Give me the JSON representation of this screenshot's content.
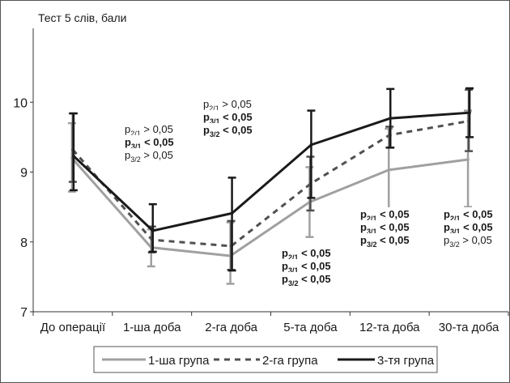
{
  "chart_data": {
    "type": "line",
    "title": "Тест 5 слів, бали",
    "xlabel": "",
    "ylabel": "",
    "categories": [
      "До операції",
      "1-ша доба",
      "2-га доба",
      "5-та доба",
      "12-та доба",
      "30-та доба"
    ],
    "ylim": [
      7,
      11
    ],
    "yticks": [
      7,
      8,
      9,
      10
    ],
    "grid": false,
    "legend_position": "bottom",
    "series": [
      {
        "name": "1-ша група",
        "color": "#a0a0a0",
        "dash": "solid",
        "values": [
          9.2,
          7.92,
          7.8,
          8.57,
          9.03,
          9.18
        ],
        "err_low": [
          8.72,
          7.65,
          7.4,
          8.07,
          8.44,
          8.5
        ],
        "err_high": [
          9.7,
          8.18,
          8.28,
          9.07,
          9.62,
          9.88
        ]
      },
      {
        "name": "2-га група",
        "color": "#505050",
        "dash": "dashed",
        "values": [
          9.32,
          8.03,
          7.94,
          8.83,
          9.53,
          9.73
        ],
        "err_low": [
          8.86,
          7.85,
          7.6,
          8.45,
          9.35,
          9.3
        ],
        "err_high": [
          9.84,
          8.22,
          8.3,
          9.22,
          9.65,
          10.18
        ]
      },
      {
        "name": "3-тя група",
        "color": "#1a1a1a",
        "dash": "solid",
        "values": [
          9.23,
          8.16,
          8.41,
          9.39,
          9.77,
          9.85
        ],
        "err_low": [
          8.74,
          7.86,
          7.59,
          8.63,
          9.35,
          9.5
        ],
        "err_high": [
          9.84,
          8.54,
          8.92,
          9.88,
          10.19,
          10.2
        ]
      }
    ],
    "annotations": [
      {
        "lines": [
          {
            "p": "p",
            "sub": "2/1",
            "rest": " > 0,05",
            "bold": false
          },
          {
            "p": "p",
            "sub": "3/1",
            "rest": " < 0,05",
            "bold": true
          },
          {
            "p": "p",
            "sub": "3/2",
            "rest": " > 0,05",
            "bold": false
          }
        ]
      },
      {
        "lines": [
          {
            "p": "p",
            "sub": "2/1",
            "rest": " > 0,05",
            "bold": false
          },
          {
            "p": "p",
            "sub": "3/1",
            "rest": " < 0,05",
            "bold": true
          },
          {
            "p": "p",
            "sub": "3/2",
            "rest": " < 0,05",
            "bold": true
          }
        ]
      },
      {
        "lines": [
          {
            "p": "p",
            "sub": "2/1",
            "rest": " < 0,05",
            "bold": true
          },
          {
            "p": "p",
            "sub": "3/1",
            "rest": " < 0,05",
            "bold": true
          },
          {
            "p": "p",
            "sub": "3/2",
            "rest": " < 0,05",
            "bold": true
          }
        ]
      },
      {
        "lines": [
          {
            "p": "p",
            "sub": "2/1",
            "rest": " < 0,05",
            "bold": true
          },
          {
            "p": "p",
            "sub": "3/1",
            "rest": " < 0,05",
            "bold": true
          },
          {
            "p": "p",
            "sub": "3/2",
            "rest": " < 0,05",
            "bold": true
          }
        ]
      },
      {
        "lines": [
          {
            "p": "p",
            "sub": "2/1",
            "rest": " < 0,05",
            "bold": true
          },
          {
            "p": "p",
            "sub": "3/1",
            "rest": " < 0,05",
            "bold": true
          },
          {
            "p": "p",
            "sub": "3/2",
            "rest": " > 0,05",
            "bold": false
          }
        ]
      }
    ]
  }
}
